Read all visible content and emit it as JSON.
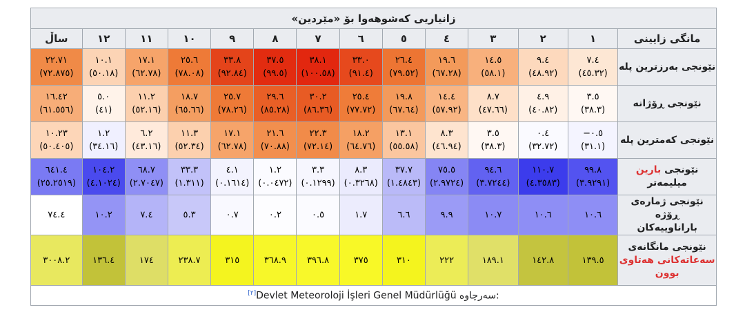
{
  "caption": "زانیاریی کەشوهەوا بۆ «مێردین»",
  "header": {
    "row_label": "مانگی زایینی",
    "months": [
      "١",
      "٢",
      "٣",
      "٤",
      "٥",
      "٦",
      "٧",
      "٨",
      "٩",
      "١٠",
      "١١",
      "١٢"
    ],
    "year": "ساڵ"
  },
  "rows": [
    {
      "label": "نێونجی بەرزترین پلە",
      "cells": [
        {
          "main": "٧.٤",
          "sub": "(٤٥.٣٢)",
          "bg": "#fde7d4",
          "fg": "#000000"
        },
        {
          "main": "٩.٤",
          "sub": "(٤٨.٩٢)",
          "bg": "#fdd9bd",
          "fg": "#000000"
        },
        {
          "main": "١٤.٥",
          "sub": "(٥٨.١)",
          "bg": "#f8b07c",
          "fg": "#000000"
        },
        {
          "main": "١٩.٦",
          "sub": "(٦٧.٢٨)",
          "bg": "#f39a5a",
          "fg": "#000000"
        },
        {
          "main": "٢٦.٤",
          "sub": "(٧٩.٥٢)",
          "bg": "#ed7533",
          "fg": "#000000"
        },
        {
          "main": "٣٣.٠",
          "sub": "(٩١.٤)",
          "bg": "#e6491d",
          "fg": "#000000"
        },
        {
          "main": "٣٨.١",
          "sub": "(١٠٠.٥٨)",
          "bg": "#e2270f",
          "fg": "#000000"
        },
        {
          "main": "٣٧.٥",
          "sub": "(٩٩.٥)",
          "bg": "#e22c10",
          "fg": "#000000"
        },
        {
          "main": "٣٣.٨",
          "sub": "(٩٢.٨٤)",
          "bg": "#e4441a",
          "fg": "#000000"
        },
        {
          "main": "٢٥.٦",
          "sub": "(٧٨.٠٨)",
          "bg": "#ee7a37",
          "fg": "#000000"
        },
        {
          "main": "١٧.١",
          "sub": "(٦٢.٧٨)",
          "bg": "#f6a46a",
          "fg": "#000000"
        },
        {
          "main": "١٠.١",
          "sub": "(٥٠.١٨)",
          "bg": "#fcd4b5",
          "fg": "#000000"
        },
        {
          "main": "٢٢.٧١",
          "sub": "(٧٢.٨٧٥)",
          "bg": "#f08a47",
          "fg": "#000000"
        }
      ]
    },
    {
      "label": "نێونجی ڕۆژانە",
      "cells": [
        {
          "main": "٣.٥",
          "sub": "(٣٨.٣)",
          "bg": "#fff8f3",
          "fg": "#000000"
        },
        {
          "main": "٤.٩",
          "sub": "(٤٠.٨٢)",
          "bg": "#fff1e6",
          "fg": "#000000"
        },
        {
          "main": "٨.٧",
          "sub": "(٤٧.٦٦)",
          "bg": "#fee0c8",
          "fg": "#000000"
        },
        {
          "main": "١٤.٤",
          "sub": "(٥٧.٩٢)",
          "bg": "#f9b583",
          "fg": "#000000"
        },
        {
          "main": "١٩.٨",
          "sub": "(٦٧.٦٤)",
          "bg": "#f39a5b",
          "fg": "#000000"
        },
        {
          "main": "٢٥.٤",
          "sub": "(٧٧.٧٢)",
          "bg": "#ef7c39",
          "fg": "#000000"
        },
        {
          "main": "٣٠.٢",
          "sub": "(٨٦.٣٦)",
          "bg": "#e85b24",
          "fg": "#000000"
        },
        {
          "main": "٢٩.٦",
          "sub": "(٨٥.٢٨)",
          "bg": "#e95f26",
          "fg": "#000000"
        },
        {
          "main": "٢٥.٧",
          "sub": "(٧٨.٢٦)",
          "bg": "#ee7a37",
          "fg": "#000000"
        },
        {
          "main": "١٨.٧",
          "sub": "(٦٥.٦٦)",
          "bg": "#f49e61",
          "fg": "#000000"
        },
        {
          "main": "١١.٢",
          "sub": "(٥٢.١٦)",
          "bg": "#fcd0ae",
          "fg": "#000000"
        },
        {
          "main": "٥.٠",
          "sub": "(٤١)",
          "bg": "#fff3ea",
          "fg": "#000000"
        },
        {
          "main": "١٦.٤٢",
          "sub": "(٦١.٥٥٦)",
          "bg": "#f7ad78",
          "fg": "#000000"
        }
      ]
    },
    {
      "label": "نێونجی کەمترین پلە",
      "cells": [
        {
          "main": "٠.٥−",
          "sub": "(٣١.١)",
          "bg": "#f4f4ff",
          "fg": "#000000"
        },
        {
          "main": "٠.٤",
          "sub": "(٣٢.٧٢)",
          "bg": "#fafaff",
          "fg": "#000000"
        },
        {
          "main": "٣.٥",
          "sub": "(٣٨.٣)",
          "bg": "#fff8f3",
          "fg": "#000000"
        },
        {
          "main": "٨.٣",
          "sub": "(٤٦.٩٤)",
          "bg": "#fee4cf",
          "fg": "#000000"
        },
        {
          "main": "١٣.١",
          "sub": "(٥٥.٥٨)",
          "bg": "#fbc69f",
          "fg": "#000000"
        },
        {
          "main": "١٨.٢",
          "sub": "(٦٤.٧٦)",
          "bg": "#f5a064",
          "fg": "#000000"
        },
        {
          "main": "٢٢.٣",
          "sub": "(٧٢.١٤)",
          "bg": "#f18b49",
          "fg": "#000000"
        },
        {
          "main": "٢١.٦",
          "sub": "(٧٠.٨٨)",
          "bg": "#f28f4e",
          "fg": "#000000"
        },
        {
          "main": "١٧.١",
          "sub": "(٦٢.٧٨)",
          "bg": "#f6a46a",
          "fg": "#000000"
        },
        {
          "main": "١١.٣",
          "sub": "(٥٢.٣٤)",
          "bg": "#fcd0ae",
          "fg": "#000000"
        },
        {
          "main": "٦.٢",
          "sub": "(٤٣.١٦)",
          "bg": "#ffeadb",
          "fg": "#000000"
        },
        {
          "main": "١.٢",
          "sub": "(٣٤.١٦)",
          "bg": "#f0f0ff",
          "fg": "#000000"
        },
        {
          "main": "١٠.٢٣",
          "sub": "(٥٠.٤٠٥)",
          "bg": "#fdd6b8",
          "fg": "#000000"
        }
      ]
    },
    {
      "label_a": "نێونجی ",
      "label_b": "بارین",
      "label_c": " میلیمەتر",
      "cells": [
        {
          "main": "٩٩.٨",
          "sub": "(٣.٩٢٩١)",
          "bg": "#5353f0",
          "fg": "#000000"
        },
        {
          "main": "١١٠.٧",
          "sub": "(٤.٣٥٨٣)",
          "bg": "#3c3cec",
          "fg": "#000000"
        },
        {
          "main": "٩٤.٦",
          "sub": "(٣.٧٢٤٤)",
          "bg": "#6262f1",
          "fg": "#000000"
        },
        {
          "main": "٧٥.٥",
          "sub": "(٢.٩٧٢٤)",
          "bg": "#8585f4",
          "fg": "#000000"
        },
        {
          "main": "٣٧.٧",
          "sub": "(١.٤٨٤٣)",
          "bg": "#b9b9f8",
          "fg": "#000000"
        },
        {
          "main": "٨.٣",
          "sub": "(٠.٣٢٦٨)",
          "bg": "#ebebfd",
          "fg": "#000000"
        },
        {
          "main": "٣.٣",
          "sub": "(٠.١٢٩٩)",
          "bg": "#f6f6fe",
          "fg": "#000000"
        },
        {
          "main": "١.٢",
          "sub": "(٠.٠٤٧٢)",
          "bg": "#fbfbff",
          "fg": "#000000"
        },
        {
          "main": "٤.١",
          "sub": "(٠.١٦١٤)",
          "bg": "#f3f3fe",
          "fg": "#000000"
        },
        {
          "main": "٣٣.٣",
          "sub": "(١.٣١١)",
          "bg": "#c2c2f9",
          "fg": "#000000"
        },
        {
          "main": "٦٨.٧",
          "sub": "(٢.٧٠٤٧)",
          "bg": "#8f8ff5",
          "fg": "#000000"
        },
        {
          "main": "١٠٤.٢",
          "sub": "(٤.١٠٢٤)",
          "bg": "#4a4aee",
          "fg": "#000000"
        },
        {
          "main": "٦٤١.٤",
          "sub": "(٢٥.٢٥١٩)",
          "bg": "#7a7af3",
          "fg": "#000000"
        }
      ]
    },
    {
      "label_line1": "نێونجی ژمارەی ڕۆژە",
      "label_line2": "باراناوییەکان",
      "cells": [
        {
          "main": "١٠.٦",
          "bg": "#8e8ef5",
          "fg": "#000000"
        },
        {
          "main": "١٠.٦",
          "bg": "#8e8ef5",
          "fg": "#000000"
        },
        {
          "main": "١٠.٧",
          "bg": "#8b8bf4",
          "fg": "#000000"
        },
        {
          "main": "٩.٩",
          "bg": "#9b9bf6",
          "fg": "#000000"
        },
        {
          "main": "٦.٦",
          "bg": "#bbbbf8",
          "fg": "#000000"
        },
        {
          "main": "١.٧",
          "bg": "#ececfd",
          "fg": "#000000"
        },
        {
          "main": "٠.٥",
          "bg": "#fbfbff",
          "fg": "#000000"
        },
        {
          "main": "٠.٢",
          "bg": "#fdfdff",
          "fg": "#000000"
        },
        {
          "main": "٠.٧",
          "bg": "#f9f9ff",
          "fg": "#000000"
        },
        {
          "main": "٥.٣",
          "bg": "#c8c8f9",
          "fg": "#000000"
        },
        {
          "main": "٧.٤",
          "bg": "#b4b4f8",
          "fg": "#000000"
        },
        {
          "main": "١٠.٢",
          "bg": "#9494f5",
          "fg": "#000000"
        },
        {
          "main": "٧٤.٤",
          "bg": "#ffffff",
          "fg": "#000000"
        }
      ]
    },
    {
      "label_line1": "نێونجی مانگانەی",
      "label_line2": "سەعاتەکانی هەتاوی",
      "label_line3": "بوون",
      "cells": [
        {
          "main": "١٣٩.٥",
          "bg": "#c2c239",
          "fg": "#000000"
        },
        {
          "main": "١٤٢.٨",
          "bg": "#c4c43f",
          "fg": "#000000"
        },
        {
          "main": "١٨٩.١",
          "bg": "#e0e068",
          "fg": "#000000"
        },
        {
          "main": "٢٢٢",
          "bg": "#ecec57",
          "fg": "#000000"
        },
        {
          "main": "٣١٠",
          "bg": "#f4f41e",
          "fg": "#000000"
        },
        {
          "main": "٣٧٥",
          "bg": "#f8f827",
          "fg": "#000000"
        },
        {
          "main": "٣٩٦.٨",
          "bg": "#f8f82a",
          "fg": "#000000"
        },
        {
          "main": "٣٦٨.٩",
          "bg": "#f7f729",
          "fg": "#000000"
        },
        {
          "main": "٣١٥",
          "bg": "#f4f41f",
          "fg": "#000000"
        },
        {
          "main": "٢٣٨.٧",
          "bg": "#eded52",
          "fg": "#000000"
        },
        {
          "main": "١٧٤",
          "bg": "#dede66",
          "fg": "#000000"
        },
        {
          "main": "١٣٦.٤",
          "bg": "#c2c239",
          "fg": "#000000"
        },
        {
          "main": "٣٠٠٨.٢",
          "bg": "#e8e85f",
          "fg": "#000000"
        }
      ]
    }
  ],
  "source": {
    "label": "سەرچاوە:",
    "text": "Devlet Meteoroloji İşleri Genel Müdürlüğü",
    "ref": "[٢]"
  },
  "colors": {
    "header_bg": "#eaecf0",
    "border": "#a2a9b1",
    "red_text": "#d33333"
  }
}
